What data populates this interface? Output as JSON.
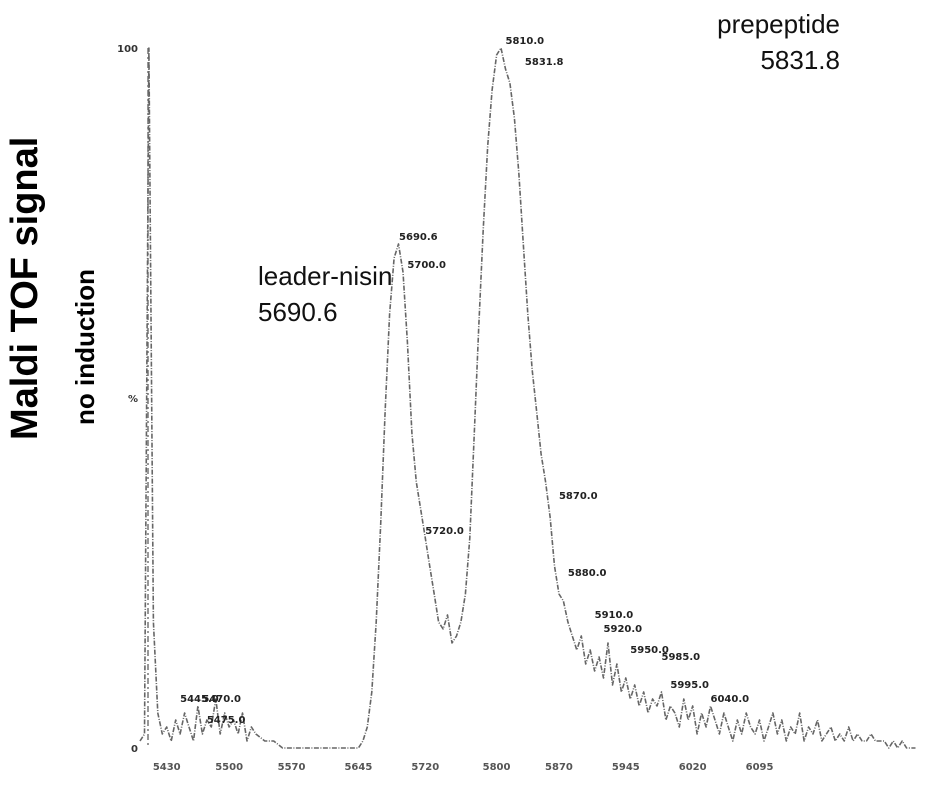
{
  "ylabel": "Maldi TOF signal",
  "ysublabel": "no induction",
  "annotations": [
    {
      "name": "leader-nisin",
      "text": "5690.6"
    },
    {
      "name": "prepeptide",
      "text": "5831.8"
    }
  ],
  "chart_data": {
    "type": "line",
    "xlim": [
      5400,
      6275
    ],
    "ylim": [
      0,
      100
    ],
    "yticks": [
      {
        "value": 0,
        "label": "0"
      },
      {
        "value": 50,
        "label": "%"
      },
      {
        "value": 100,
        "label": "100"
      }
    ],
    "xticks": [
      {
        "value": 5430,
        "label": "5430"
      },
      {
        "value": 5500,
        "label": "5500"
      },
      {
        "value": 5570,
        "label": "5570"
      },
      {
        "value": 5645,
        "label": "5645"
      },
      {
        "value": 5720,
        "label": "5720"
      },
      {
        "value": 5800,
        "label": "5800"
      },
      {
        "value": 5870,
        "label": "5870"
      },
      {
        "value": 5945,
        "label": "5945"
      },
      {
        "value": 6020,
        "label": "6020"
      },
      {
        "value": 6095,
        "label": "6095"
      }
    ],
    "x": [
      5400,
      5405,
      5410,
      5415,
      5420,
      5425,
      5430,
      5435,
      5440,
      5445,
      5450,
      5455,
      5460,
      5465,
      5470,
      5475,
      5480,
      5485,
      5490,
      5495,
      5500,
      5505,
      5510,
      5515,
      5520,
      5525,
      5530,
      5540,
      5550,
      5560,
      5570,
      5580,
      5590,
      5600,
      5610,
      5620,
      5630,
      5640,
      5645,
      5650,
      5655,
      5660,
      5665,
      5670,
      5675,
      5680,
      5685,
      5690,
      5695,
      5700,
      5705,
      5710,
      5715,
      5720,
      5725,
      5730,
      5735,
      5740,
      5745,
      5750,
      5755,
      5760,
      5765,
      5770,
      5775,
      5780,
      5785,
      5790,
      5795,
      5800,
      5805,
      5810,
      5815,
      5820,
      5825,
      5830,
      5835,
      5840,
      5845,
      5850,
      5855,
      5860,
      5865,
      5870,
      5875,
      5880,
      5885,
      5890,
      5895,
      5900,
      5905,
      5910,
      5915,
      5920,
      5925,
      5930,
      5935,
      5940,
      5945,
      5950,
      5955,
      5960,
      5965,
      5970,
      5975,
      5980,
      5985,
      5990,
      5995,
      6000,
      6005,
      6010,
      6015,
      6020,
      6025,
      6030,
      6035,
      6040,
      6045,
      6050,
      6055,
      6060,
      6065,
      6070,
      6075,
      6080,
      6085,
      6090,
      6095,
      6100,
      6105,
      6110,
      6115,
      6120,
      6125,
      6130,
      6135,
      6140,
      6145,
      6150,
      6155,
      6160,
      6165,
      6170,
      6175,
      6180,
      6185,
      6190,
      6195,
      6200,
      6205,
      6210,
      6215,
      6220,
      6225,
      6230,
      6235,
      6240,
      6245,
      6250,
      6255,
      6260,
      6265,
      6270
    ],
    "y": [
      1,
      2,
      100,
      18,
      5,
      2,
      3,
      1,
      4,
      2,
      5,
      3,
      1,
      6,
      2,
      4,
      3,
      7,
      2,
      5,
      3,
      4,
      2,
      5,
      1,
      3,
      2,
      1,
      1,
      0,
      0,
      0,
      0,
      0,
      0,
      0,
      0,
      0,
      0,
      1,
      3,
      8,
      18,
      32,
      48,
      62,
      70,
      72,
      68,
      58,
      45,
      38,
      34,
      30,
      26,
      22,
      18,
      17,
      19,
      15,
      16,
      18,
      22,
      30,
      45,
      60,
      74,
      86,
      94,
      99,
      100,
      97,
      95,
      90,
      82,
      72,
      62,
      54,
      48,
      42,
      38,
      33,
      26,
      22,
      21,
      18,
      16,
      14,
      16,
      12,
      14,
      11,
      13,
      10,
      15,
      9,
      12,
      8,
      10,
      7,
      9,
      6,
      8,
      5,
      7,
      6,
      8,
      4,
      6,
      5,
      3,
      7,
      4,
      6,
      2,
      5,
      3,
      6,
      4,
      2,
      5,
      3,
      1,
      4,
      2,
      5,
      3,
      2,
      4,
      1,
      3,
      5,
      2,
      4,
      1,
      3,
      2,
      5,
      1,
      3,
      2,
      4,
      1,
      2,
      3,
      1,
      2,
      1,
      3,
      1,
      2,
      1,
      1,
      2,
      1,
      1,
      1,
      0,
      1,
      0,
      1,
      0,
      0,
      0
    ],
    "peaks": [
      {
        "x": 5690.6,
        "y": 72,
        "label": "5690.6"
      },
      {
        "x": 5700.0,
        "y": 68,
        "label": "5700.0"
      },
      {
        "x": 5720.0,
        "y": 30,
        "label": "5720.0"
      },
      {
        "x": 5810.0,
        "y": 100,
        "label": "5810.0"
      },
      {
        "x": 5831.8,
        "y": 97,
        "label": "5831.8"
      },
      {
        "x": 5870.0,
        "y": 35,
        "label": "5870.0"
      },
      {
        "x": 5880.0,
        "y": 24,
        "label": "5880.0"
      },
      {
        "x": 5910.0,
        "y": 18,
        "label": "5910.0"
      },
      {
        "x": 5920.0,
        "y": 16,
        "label": "5920.0"
      },
      {
        "x": 5950.0,
        "y": 13,
        "label": "5950.0"
      },
      {
        "x": 5985.0,
        "y": 12,
        "label": "5985.0"
      },
      {
        "x": 5995.0,
        "y": 8,
        "label": "5995.0"
      },
      {
        "x": 6040.0,
        "y": 6,
        "label": "6040.0"
      },
      {
        "x": 5445.0,
        "y": 6,
        "label": "5445.0"
      },
      {
        "x": 5470.0,
        "y": 6,
        "label": "5470.0"
      },
      {
        "x": 5475.0,
        "y": 3,
        "label": "5475.0"
      }
    ]
  }
}
